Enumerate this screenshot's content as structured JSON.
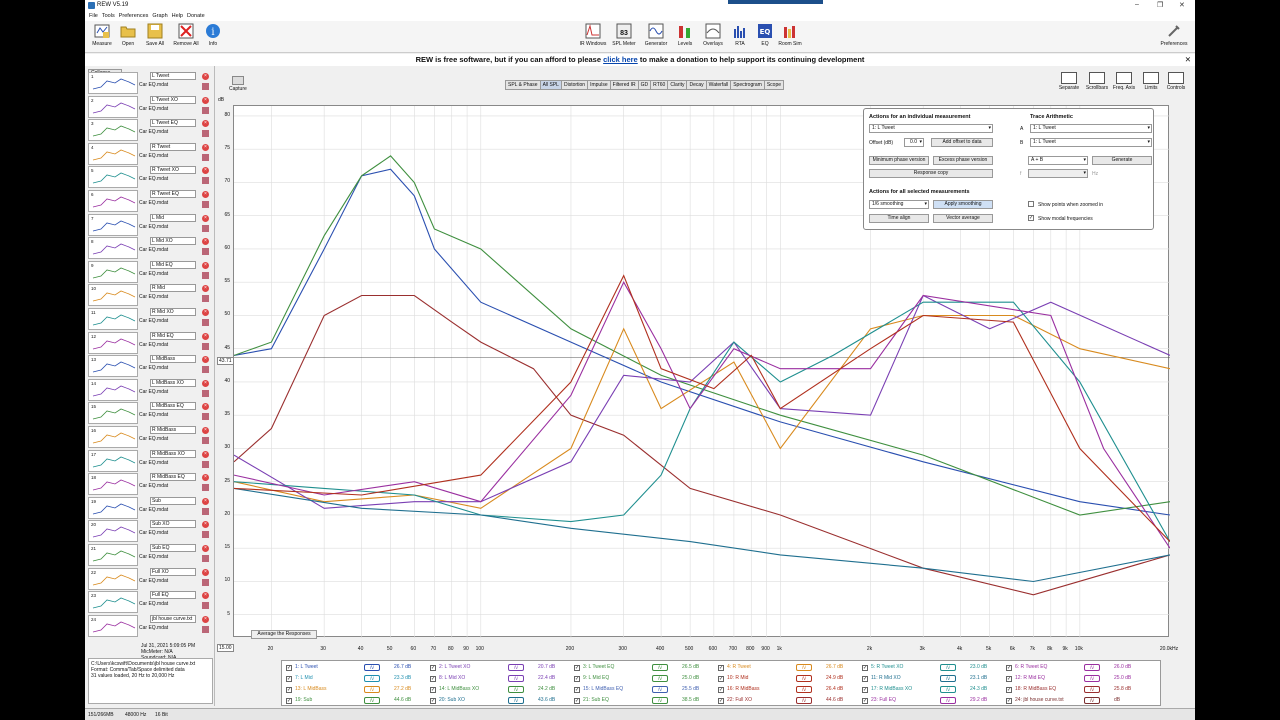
{
  "window": {
    "title": "REW V5.19"
  },
  "menu": [
    "File",
    "Tools",
    "Preferences",
    "Graph",
    "Help",
    "Donate"
  ],
  "toolbar_left": [
    {
      "label": "Measure",
      "icon": "measure-icon"
    },
    {
      "label": "Open",
      "icon": "folder-icon"
    },
    {
      "label": "Save All",
      "icon": "save-icon"
    },
    {
      "label": "Remove All",
      "icon": "remove-all-icon"
    },
    {
      "label": "Info",
      "icon": "info-icon"
    }
  ],
  "toolbar_center": [
    {
      "label": "IR Windows",
      "icon": "ir-windows-icon"
    },
    {
      "label": "SPL Meter",
      "icon": "spl-meter-icon",
      "value": "83"
    },
    {
      "label": "Generator",
      "icon": "generator-icon"
    },
    {
      "label": "Levels",
      "icon": "levels-icon"
    },
    {
      "label": "Overlays",
      "icon": "overlays-icon"
    },
    {
      "label": "RTA",
      "icon": "rta-icon"
    },
    {
      "label": "EQ",
      "icon": "eq-icon"
    },
    {
      "label": "Room Sim",
      "icon": "room-sim-icon"
    }
  ],
  "toolbar_right": {
    "label": "Preferences"
  },
  "donate": {
    "before": "REW is free software, but if you can afford to please ",
    "link": "click here",
    "after": " to make a donation to help support its continuing development"
  },
  "sidebar": {
    "collapse_label": "Collapse",
    "measurements": [
      {
        "num": "1",
        "name": "L Tweet",
        "sub": "Car EQ.mdat"
      },
      {
        "num": "2",
        "name": "L Tweet XO",
        "sub": "Car EQ.mdat"
      },
      {
        "num": "3",
        "name": "L Tweet EQ",
        "sub": "Car EQ.mdat"
      },
      {
        "num": "4",
        "name": "R Tweet",
        "sub": "Car EQ.mdat"
      },
      {
        "num": "5",
        "name": "R Tweet XO",
        "sub": "Car EQ.mdat"
      },
      {
        "num": "6",
        "name": "R Tweet EQ",
        "sub": "Car EQ.mdat"
      },
      {
        "num": "7",
        "name": "L Mid",
        "sub": "Car EQ.mdat"
      },
      {
        "num": "8",
        "name": "L Mid XO",
        "sub": "Car EQ.mdat"
      },
      {
        "num": "9",
        "name": "L Mid EQ",
        "sub": "Car EQ.mdat"
      },
      {
        "num": "10",
        "name": "R Mid",
        "sub": "Car EQ.mdat"
      },
      {
        "num": "11",
        "name": "R Mid XO",
        "sub": "Car EQ.mdat"
      },
      {
        "num": "12",
        "name": "R Mid EQ",
        "sub": "Car EQ.mdat"
      },
      {
        "num": "13",
        "name": "L MidBass",
        "sub": "Car EQ.mdat"
      },
      {
        "num": "14",
        "name": "L MidBass XO",
        "sub": "Car EQ.mdat"
      },
      {
        "num": "15",
        "name": "L MidBass EQ",
        "sub": "Car EQ.mdat"
      },
      {
        "num": "16",
        "name": "R MidBass",
        "sub": "Car EQ.mdat"
      },
      {
        "num": "17",
        "name": "R MidBass XO",
        "sub": "Car EQ.mdat"
      },
      {
        "num": "18",
        "name": "R MidBass EQ",
        "sub": "Car EQ.mdat"
      },
      {
        "num": "19",
        "name": "Sub",
        "sub": "Car EQ.mdat"
      },
      {
        "num": "20",
        "name": "Sub XO",
        "sub": "Car EQ.mdat"
      },
      {
        "num": "21",
        "name": "Sub EQ",
        "sub": "Car EQ.mdat"
      },
      {
        "num": "22",
        "name": "Full XO",
        "sub": "Car EQ.mdat"
      },
      {
        "num": "23",
        "name": "Full EQ",
        "sub": "Car EQ.mdat"
      },
      {
        "num": "24",
        "name": "jbl house curve.txt",
        "sub": "Car EQ.mdat"
      }
    ],
    "info": {
      "date": "Jul 31, 2021 5:09:05 PM",
      "mic": "MicMeter: N/A",
      "soundcard": "Soundcard: N/A",
      "path": "C:\\Users\\kcswift\\Documents\\jbl house curve.txt",
      "format": "Format: Comma/Tab/Space delimited data",
      "values": "31 values loaded, 20 Hz to 20,000 Hz"
    }
  },
  "graph": {
    "capture_label": "Capture",
    "tabs": [
      "SPL & Phase",
      "All SPL",
      "Distortion",
      "Impulse",
      "Filtered IR",
      "GD",
      "RT60",
      "Clarity",
      "Decay",
      "Waterfall",
      "Spectrogram",
      "Scope"
    ],
    "active_tab": "All SPL",
    "right_tools": [
      "Separate",
      "Scrollbars",
      "Freq. Axis",
      "Limits",
      "Controls"
    ],
    "y_unit": "dB",
    "y_ticks": [
      "80",
      "75",
      "70",
      "65",
      "60",
      "55",
      "50",
      "45",
      "40",
      "35",
      "30",
      "25",
      "20",
      "15",
      "10",
      "5"
    ],
    "x_ticks": [
      "20",
      "30",
      "40",
      "50",
      "60",
      "70",
      "80",
      "90",
      "100",
      "200",
      "300",
      "400",
      "500",
      "600",
      "700",
      "800",
      "900",
      "1k",
      "2k",
      "3k",
      "4k",
      "5k",
      "6k",
      "7k",
      "8k",
      "9k",
      "10k",
      "20.0kHz"
    ],
    "cursor_y": "43.71",
    "cursor_x": "15.00",
    "average_btn": "Average the Responses"
  },
  "controls": {
    "individual_title": "Actions for an individual measurement",
    "selected_meas": "1: L Tweet",
    "offset_label": "Offset (dB)",
    "offset_value": "0.0",
    "add_offset": "Add offset to data",
    "min_phase": "Minimum phase version",
    "excess_phase": "Excess phase version",
    "response_copy": "Response copy",
    "all_title": "Actions for all selected measurements",
    "smoothing": "1/6 smoothing",
    "apply_smoothing": "Apply smoothing",
    "time_align": "Time align",
    "vector_avg": "Vector average",
    "trace_title": "Trace Arithmetic",
    "a_label": "A",
    "b_label": "B",
    "a_value": "1: L Tweet",
    "b_value": "1: L Tweet",
    "op_value": "A + B",
    "generate": "Generate",
    "f_label": "f",
    "hz_label": "Hz",
    "show_points": "Show points when zoomed in",
    "show_modal": "Show modal frequencies"
  },
  "legend": [
    {
      "id": "1: L Tweet",
      "db": "26.7 dB",
      "color": "#2a4fb0"
    },
    {
      "id": "2: L Tweet XO",
      "db": "20.7 dB",
      "color": "#7a3fb3"
    },
    {
      "id": "3: L Tweet EQ",
      "db": "26.5 dB",
      "color": "#3f8f3f"
    },
    {
      "id": "4: R Tweet",
      "db": "26.7 dB",
      "color": "#d88a1e"
    },
    {
      "id": "5: R Tweet XO",
      "db": "23.0 dB",
      "color": "#1f8f8f"
    },
    {
      "id": "6: R Tweet EQ",
      "db": "26.0 dB",
      "color": "#9a2fa0"
    },
    {
      "id": "7: L Mid",
      "db": "23.3 dB",
      "color": "#1f8faf"
    },
    {
      "id": "8: L Mid XO",
      "db": "22.4 dB",
      "color": "#7a3fb3"
    },
    {
      "id": "9: L Mid EQ",
      "db": "25.0 dB",
      "color": "#3f8f3f"
    },
    {
      "id": "10: R Mid",
      "db": "24.9 dB",
      "color": "#b0301e"
    },
    {
      "id": "11: R Mid XO",
      "db": "23.1 dB",
      "color": "#1f6f8f"
    },
    {
      "id": "12: R Mid EQ",
      "db": "25.0 dB",
      "color": "#9a2fa0"
    },
    {
      "id": "13: L MidBass",
      "db": "27.2 dB",
      "color": "#d88a1e"
    },
    {
      "id": "14: L MidBass XO",
      "db": "24.2 dB",
      "color": "#3f8f3f"
    },
    {
      "id": "15: L MidBass EQ",
      "db": "25.5 dB",
      "color": "#3f5fb0"
    },
    {
      "id": "16: R MidBass",
      "db": "26.4 dB",
      "color": "#b0301e"
    },
    {
      "id": "17: R MidBass XO",
      "db": "24.3 dB",
      "color": "#1f8f8f"
    },
    {
      "id": "18: R MidBass EQ",
      "db": "25.8 dB",
      "color": "#9a2f2f"
    },
    {
      "id": "19: Sub",
      "db": "44.6 dB",
      "color": "#3f8f3f"
    },
    {
      "id": "20: Sub XO",
      "db": "43.6 dB",
      "color": "#1f6f8f"
    },
    {
      "id": "21: Sub EQ",
      "db": "38.5 dB",
      "color": "#3f8f3f"
    },
    {
      "id": "22: Full XO",
      "db": "44.6 dB",
      "color": "#9a2f2f"
    },
    {
      "id": "23: Full EQ",
      "db": "29.2 dB",
      "color": "#9a2fa0"
    },
    {
      "id": "24: jbl house curve.txt",
      "db": "dB",
      "color": "#7a2f2f"
    }
  ],
  "status": {
    "mem": "151/266MB",
    "rate": "48000 Hz",
    "bits": "16 Bit"
  }
}
